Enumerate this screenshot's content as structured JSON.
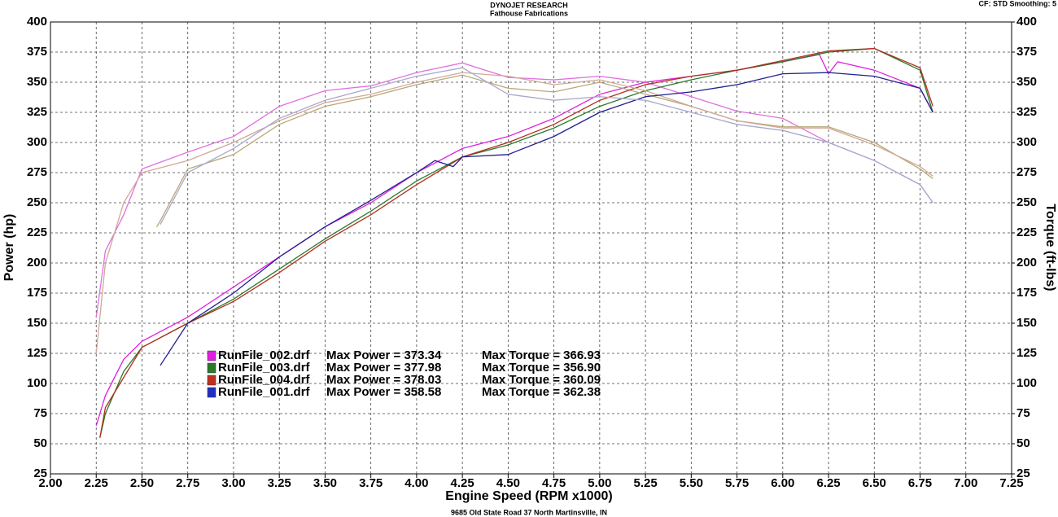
{
  "header": {
    "company": "DYNOJET RESEARCH",
    "customer": "Fathouse Fabrications",
    "settings": "CF: STD  Smoothing: 5"
  },
  "footer": "9685 Old State Road 37 North Martinsville, IN",
  "chart_data": {
    "type": "line",
    "x_label": "Engine Speed (RPM x1000)",
    "y_label": "Power (hp)",
    "y2_label": "Torque (ft-lbs)",
    "xlim": [
      2,
      7.25
    ],
    "xticks": [
      {
        "value": 2,
        "label": "2.00"
      },
      2.25,
      {
        "value": 2.5,
        "label": "2.50"
      },
      2.75,
      {
        "value": 3,
        "label": "3.00"
      },
      3.25,
      {
        "value": 3.5,
        "label": "3.50"
      },
      3.75,
      {
        "value": 4,
        "label": "4.00"
      },
      4.25,
      {
        "value": 4.5,
        "label": "4.50"
      },
      4.75,
      {
        "value": 5,
        "label": "5.00"
      },
      5.25,
      {
        "value": 5.5,
        "label": "5.50"
      },
      5.75,
      {
        "value": 6,
        "label": "6.00"
      },
      6.25,
      {
        "value": 6.5,
        "label": "6.50"
      },
      6.75,
      {
        "value": 7,
        "label": "7.00"
      },
      7.25
    ],
    "ylim": [
      25,
      400
    ],
    "yticks": [
      25,
      50,
      75,
      100,
      125,
      150,
      175,
      200,
      225,
      250,
      275,
      300,
      325,
      350,
      375,
      400
    ],
    "y2lim": [
      25,
      400
    ],
    "y2ticks": [
      25,
      50,
      75,
      100,
      125,
      150,
      175,
      200,
      225,
      250,
      275,
      300,
      325,
      350,
      375,
      400
    ],
    "grid": true,
    "series": [
      {
        "color": "#e020e0",
        "axis": "y",
        "x": [
          2.25,
          2.3,
          2.4,
          2.5,
          2.75,
          3,
          3.25,
          3.5,
          3.75,
          4,
          4.25,
          4.5,
          4.75,
          5,
          5.25,
          5.5,
          5.75,
          6,
          6.2,
          6.25,
          6.3,
          6.5,
          6.75,
          6.82
        ],
        "values": [
          65,
          90,
          120,
          135,
          155,
          180,
          205,
          230,
          250,
          275,
          295,
          305,
          320,
          340,
          350,
          355,
          360,
          367,
          373,
          357,
          367,
          360,
          345,
          325
        ]
      },
      {
        "color": "#e070e0",
        "axis": "y2",
        "x": [
          2.25,
          2.3,
          2.4,
          2.5,
          2.75,
          3,
          3.25,
          3.5,
          3.75,
          4,
          4.25,
          4.5,
          4.75,
          5,
          5.25,
          5.5,
          5.75,
          6,
          6.25,
          6.5,
          6.75,
          6.82
        ],
        "values": [
          155,
          210,
          240,
          278,
          292,
          305,
          330,
          343,
          347,
          358,
          366,
          354,
          352,
          355,
          350,
          338,
          326,
          320,
          300,
          285,
          265,
          250
        ]
      },
      {
        "color": "#2a7a2a",
        "axis": "y",
        "x": [
          2.27,
          2.3,
          2.4,
          2.5,
          2.75,
          3,
          3.25,
          3.5,
          3.75,
          4,
          4.25,
          4.5,
          4.75,
          5,
          5.25,
          5.5,
          5.75,
          6,
          6.25,
          6.5,
          6.75,
          6.82
        ],
        "values": [
          55,
          75,
          110,
          130,
          150,
          170,
          195,
          220,
          243,
          268,
          288,
          298,
          312,
          330,
          343,
          352,
          360,
          367,
          375,
          378,
          360,
          325
        ]
      },
      {
        "color": "#b8a878",
        "axis": "y2",
        "x": [
          2.58,
          2.6,
          2.75,
          3,
          3.25,
          3.5,
          3.75,
          4,
          4.25,
          4.5,
          4.75,
          5,
          5.25,
          5.5,
          5.75,
          6,
          6.25,
          6.5,
          6.75,
          6.82
        ],
        "values": [
          230,
          235,
          278,
          290,
          315,
          330,
          338,
          348,
          356,
          345,
          342,
          350,
          340,
          330,
          318,
          313,
          313,
          300,
          278,
          270
        ]
      },
      {
        "color": "#b03020",
        "axis": "y",
        "x": [
          2.27,
          2.3,
          2.4,
          2.5,
          2.75,
          3,
          3.25,
          3.5,
          3.75,
          4,
          4.25,
          4.5,
          4.75,
          5,
          5.25,
          5.5,
          5.75,
          6,
          6.25,
          6.5,
          6.75,
          6.82
        ],
        "values": [
          55,
          80,
          105,
          130,
          150,
          168,
          192,
          218,
          240,
          265,
          288,
          300,
          315,
          335,
          348,
          355,
          360,
          368,
          376,
          378,
          362,
          330
        ]
      },
      {
        "color": "#d0a898",
        "axis": "y2",
        "x": [
          2.25,
          2.3,
          2.4,
          2.5,
          2.75,
          3,
          3.25,
          3.5,
          3.75,
          4,
          4.25,
          4.5,
          4.75,
          5,
          5.25,
          5.5,
          5.75,
          6,
          6.25,
          6.5,
          6.75,
          6.82
        ],
        "values": [
          125,
          200,
          250,
          275,
          285,
          300,
          318,
          333,
          340,
          350,
          358,
          355,
          348,
          352,
          343,
          330,
          318,
          312,
          312,
          298,
          280,
          272
        ]
      },
      {
        "color": "#202090",
        "axis": "y",
        "x": [
          2.6,
          2.75,
          3,
          3.25,
          3.5,
          3.75,
          4,
          4.1,
          4.2,
          4.25,
          4.5,
          4.75,
          5,
          5.25,
          5.5,
          5.75,
          6,
          6.25,
          6.5,
          6.75,
          6.82
        ],
        "values": [
          115,
          150,
          175,
          205,
          230,
          252,
          275,
          285,
          280,
          288,
          290,
          305,
          325,
          338,
          342,
          348,
          357,
          358,
          355,
          345,
          325
        ]
      },
      {
        "color": "#a8a8cc",
        "axis": "y2",
        "x": [
          2.6,
          2.75,
          3,
          3.25,
          3.5,
          3.75,
          4,
          4.25,
          4.5,
          4.75,
          5,
          5.25,
          5.5,
          5.75,
          6,
          6.25,
          6.5,
          6.75,
          6.82
        ],
        "values": [
          232,
          275,
          295,
          320,
          335,
          345,
          355,
          362,
          340,
          335,
          338,
          335,
          325,
          315,
          310,
          300,
          285,
          265,
          250
        ]
      }
    ],
    "legend": [
      {
        "color": "#e020e0",
        "file": "RunFile_002.drf",
        "power": "Max Power = 373.34",
        "torque": "Max Torque = 366.93"
      },
      {
        "color": "#2a7a2a",
        "file": "RunFile_003.drf",
        "power": "Max Power = 377.98",
        "torque": "Max Torque = 356.90"
      },
      {
        "color": "#c03020",
        "file": "RunFile_004.drf",
        "power": "Max Power = 378.03",
        "torque": "Max Torque = 360.09"
      },
      {
        "color": "#2030c0",
        "file": "RunFile_001.drf",
        "power": "Max Power = 358.58",
        "torque": "Max Torque = 362.38"
      }
    ]
  }
}
